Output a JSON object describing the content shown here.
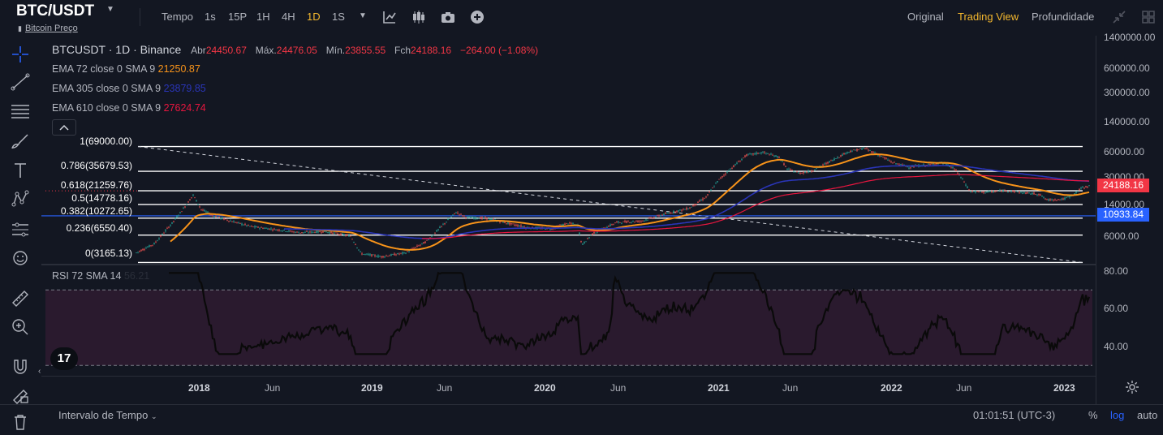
{
  "header": {
    "symbol": "BTC/USDT",
    "subtitle": "Bitcoin Preço",
    "toolbar": {
      "tempo": "Tempo",
      "intervals": [
        "1s",
        "15P",
        "1H",
        "4H",
        "1D",
        "1S"
      ],
      "active_interval": "1D"
    },
    "views": {
      "original": "Original",
      "trading": "Trading View",
      "depth": "Profundidade",
      "active": "Trading View"
    }
  },
  "legend": {
    "pair": "BTCUSDT · 1D · Binance",
    "open_label": "Abr",
    "open": "24450.67",
    "high_label": "Máx.",
    "high": "24476.05",
    "low_label": "Mín.",
    "low": "23855.55",
    "close_label": "Fch",
    "close": "24188.16",
    "change": "−264.00 (−1.08%)",
    "ema": [
      {
        "label": "EMA 72 close 0 SMA 9",
        "value": "21250.87",
        "color": "#f7931a"
      },
      {
        "label": "EMA 305 close 0 SMA 9",
        "value": "23879.85",
        "color": "#2a35b8"
      },
      {
        "label": "EMA 610 close 0 SMA 9",
        "value": "27624.74",
        "color": "#e8163f"
      }
    ],
    "collapse_glyph": "^"
  },
  "fib_levels": [
    {
      "label": "1(69000.00)",
      "price": 69000
    },
    {
      "label": "0.786(35679.53)",
      "price": 35679.53
    },
    {
      "label": "0.618(21259.76)",
      "price": 21259.76
    },
    {
      "label": "0.5(14778.16)",
      "price": 14778.16
    },
    {
      "label": "0.382(10272.65)",
      "price": 10272.65
    },
    {
      "label": "0.236(6550.40)",
      "price": 6550.4
    },
    {
      "label": "0(3165.13)",
      "price": 3165.13
    }
  ],
  "price_axis": {
    "labels": [
      "1400000.00",
      "600000.00",
      "300000.00",
      "140000.00",
      "60000.00",
      "30000.00",
      "14000.00",
      "6000.00"
    ],
    "current_price": "24188.16",
    "current_color": "#f23645",
    "line_price": "10933.84",
    "line_color": "#2962ff"
  },
  "rsi": {
    "label": "RSI 72 SMA 14",
    "value": "56.21",
    "axis_labels": [
      "80.00",
      "60.00",
      "40.00"
    ],
    "upper": 70,
    "lower": 30
  },
  "time_axis": {
    "labels": [
      {
        "text": "2018",
        "bold": true
      },
      {
        "text": "Jun",
        "bold": false
      },
      {
        "text": "2019",
        "bold": true
      },
      {
        "text": "Jun",
        "bold": false
      },
      {
        "text": "2020",
        "bold": true
      },
      {
        "text": "Jun",
        "bold": false
      },
      {
        "text": "2021",
        "bold": true
      },
      {
        "text": "Jun",
        "bold": false
      },
      {
        "text": "2022",
        "bold": true
      },
      {
        "text": "Jun",
        "bold": false
      },
      {
        "text": "2023",
        "bold": true
      }
    ]
  },
  "footer": {
    "interval": "Intervalo de Tempo",
    "clock": "01:01:51 (UTC-3)",
    "percent": "%",
    "log": "log",
    "auto": "auto"
  },
  "watermark": "17"
}
